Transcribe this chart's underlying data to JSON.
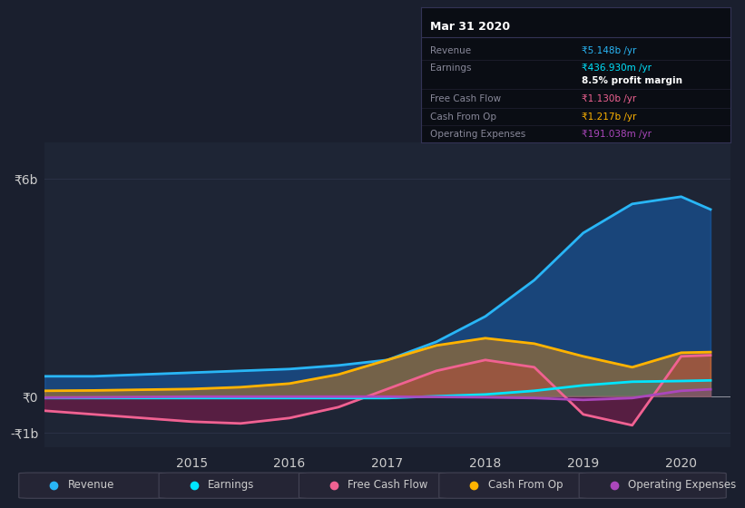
{
  "background_color": "#1a1f2e",
  "plot_bg_color": "#1e2535",
  "grid_color": "#2a3045",
  "text_color": "#cccccc",
  "title_color": "#ffffff",
  "ytick_labels": [
    "₹6b",
    "₹0",
    "-₹1b"
  ],
  "ytick_values": [
    6000000000,
    0,
    -1000000000
  ],
  "ylim": [
    -1400000000,
    7000000000
  ],
  "xlim_start": 2013.5,
  "xlim_end": 2020.5,
  "xtick_years": [
    2015,
    2016,
    2017,
    2018,
    2019,
    2020
  ],
  "series": {
    "Revenue": {
      "color": "#29b6f6",
      "fill_color": "#1565c0",
      "fill_alpha": 0.5,
      "x": [
        2013.5,
        2014.0,
        2014.5,
        2015.0,
        2015.5,
        2016.0,
        2016.5,
        2017.0,
        2017.5,
        2018.0,
        2018.5,
        2019.0,
        2019.5,
        2020.0,
        2020.3
      ],
      "y": [
        550000000,
        550000000,
        600000000,
        650000000,
        700000000,
        750000000,
        850000000,
        1000000000,
        1500000000,
        2200000000,
        3200000000,
        4500000000,
        5300000000,
        5500000000,
        5148000000
      ]
    },
    "Earnings": {
      "color": "#00e5ff",
      "fill_color": "#00bcd4",
      "fill_alpha": 0.15,
      "x": [
        2013.5,
        2014.0,
        2014.5,
        2015.0,
        2015.5,
        2016.0,
        2016.5,
        2017.0,
        2017.5,
        2018.0,
        2018.5,
        2019.0,
        2019.5,
        2020.0,
        2020.3
      ],
      "y": [
        -50000000,
        -50000000,
        -50000000,
        -50000000,
        -50000000,
        -50000000,
        -50000000,
        -50000000,
        0,
        50000000,
        150000000,
        300000000,
        400000000,
        420000000,
        436930000
      ]
    },
    "FreeCashFlow": {
      "color": "#f06292",
      "fill_color": "#ad1457",
      "fill_alpha": 0.4,
      "x": [
        2013.5,
        2014.0,
        2014.5,
        2015.0,
        2015.5,
        2016.0,
        2016.5,
        2017.0,
        2017.5,
        2018.0,
        2018.5,
        2019.0,
        2019.5,
        2020.0,
        2020.3
      ],
      "y": [
        -400000000,
        -500000000,
        -600000000,
        -700000000,
        -750000000,
        -600000000,
        -300000000,
        200000000,
        700000000,
        1000000000,
        800000000,
        -500000000,
        -800000000,
        1100000000,
        1130000000
      ]
    },
    "CashFromOp": {
      "color": "#ffb300",
      "fill_color": "#ff8f00",
      "fill_alpha": 0.4,
      "x": [
        2013.5,
        2014.0,
        2014.5,
        2015.0,
        2015.5,
        2016.0,
        2016.5,
        2017.0,
        2017.5,
        2018.0,
        2018.5,
        2019.0,
        2019.5,
        2020.0,
        2020.3
      ],
      "y": [
        150000000,
        160000000,
        180000000,
        200000000,
        250000000,
        350000000,
        600000000,
        1000000000,
        1400000000,
        1600000000,
        1450000000,
        1100000000,
        800000000,
        1200000000,
        1217000000
      ]
    },
    "OperatingExpenses": {
      "color": "#ab47bc",
      "fill_color": "#6a1b9a",
      "fill_alpha": 0.2,
      "x": [
        2013.5,
        2014.0,
        2014.5,
        2015.0,
        2015.5,
        2016.0,
        2016.5,
        2017.0,
        2017.5,
        2018.0,
        2018.5,
        2019.0,
        2019.5,
        2020.0,
        2020.3
      ],
      "y": [
        -40000000,
        -30000000,
        -20000000,
        -10000000,
        -10000000,
        -10000000,
        -10000000,
        -10000000,
        -20000000,
        -30000000,
        -50000000,
        -100000000,
        -50000000,
        150000000,
        191038000
      ]
    }
  },
  "tooltip": {
    "date": "Mar 31 2020",
    "rows": [
      {
        "label": "Revenue",
        "value": "₹5.148b /yr",
        "value_color": "#29b6f6",
        "bold": false
      },
      {
        "label": "Earnings",
        "value": "₹436.930m /yr",
        "value_color": "#00e5ff",
        "bold": false
      },
      {
        "label": "",
        "value": "8.5% profit margin",
        "value_color": "#ffffff",
        "bold": true
      },
      {
        "label": "Free Cash Flow",
        "value": "₹1.130b /yr",
        "value_color": "#f06292",
        "bold": false
      },
      {
        "label": "Cash From Op",
        "value": "₹1.217b /yr",
        "value_color": "#ffb300",
        "bold": false
      },
      {
        "label": "Operating Expenses",
        "value": "₹191.038m /yr",
        "value_color": "#ab47bc",
        "bold": false
      }
    ]
  },
  "legend": [
    {
      "label": "Revenue",
      "color": "#29b6f6"
    },
    {
      "label": "Earnings",
      "color": "#00e5ff"
    },
    {
      "label": "Free Cash Flow",
      "color": "#f06292"
    },
    {
      "label": "Cash From Op",
      "color": "#ffb300"
    },
    {
      "label": "Operating Expenses",
      "color": "#ab47bc"
    }
  ]
}
